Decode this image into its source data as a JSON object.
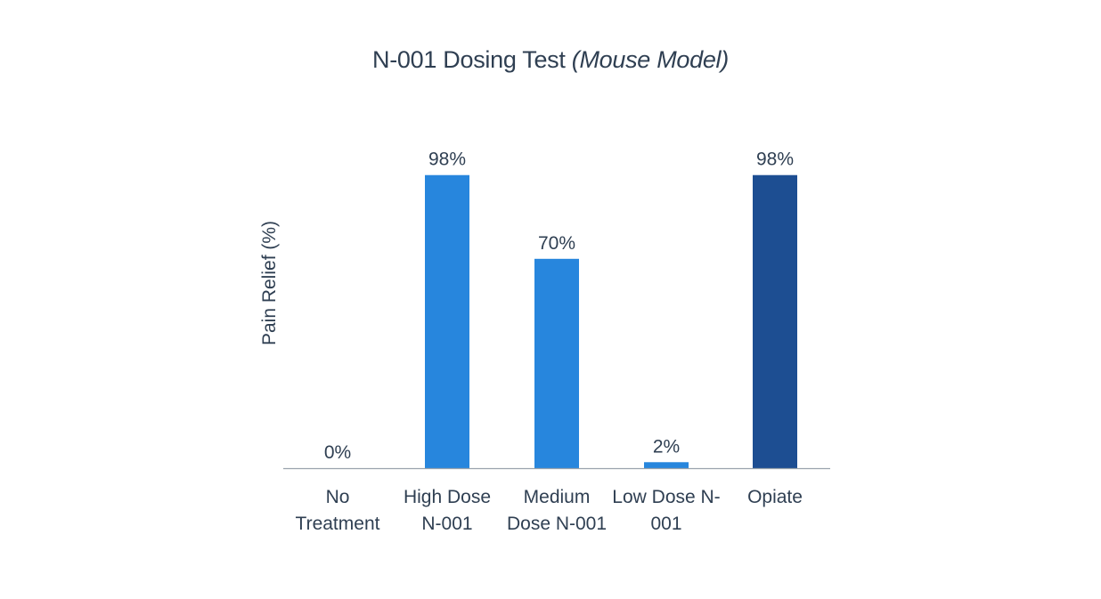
{
  "chart_data": {
    "type": "bar",
    "title_main": "N-001 Dosing Test ",
    "title_italic": "(Mouse Model)",
    "ylabel": "Pain Relief (%)",
    "xlabel": "",
    "ylim": [
      0,
      100
    ],
    "grid": false,
    "legend": "none",
    "categories": [
      [
        "No",
        "Treatment"
      ],
      [
        "High Dose",
        "N-001"
      ],
      [
        "Medium",
        "Dose N-001"
      ],
      [
        "Low Dose N-",
        "001"
      ],
      [
        "Opiate"
      ]
    ],
    "values": [
      0,
      98,
      70,
      2,
      98
    ],
    "data_labels": [
      "0%",
      "98%",
      "70%",
      "2%",
      "98%"
    ],
    "colors": [
      "#2786dd",
      "#2786dd",
      "#2786dd",
      "#2786dd",
      "#1d4e92"
    ],
    "axis_color": "#9aa3ad",
    "text_color": "#2f3f52"
  }
}
